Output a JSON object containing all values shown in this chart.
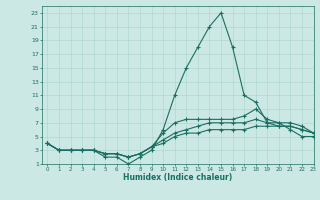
{
  "xlabel": "Humidex (Indice chaleur)",
  "xlim": [
    -0.5,
    23
  ],
  "ylim": [
    1,
    24
  ],
  "yticks": [
    1,
    3,
    5,
    7,
    9,
    11,
    13,
    15,
    17,
    19,
    21,
    23
  ],
  "xticks": [
    0,
    1,
    2,
    3,
    4,
    5,
    6,
    7,
    8,
    9,
    10,
    11,
    12,
    13,
    14,
    15,
    16,
    17,
    18,
    19,
    20,
    21,
    22,
    23
  ],
  "bg_color": "#cce8e4",
  "grid_color": "#b0d8d0",
  "line_color": "#1a6e62",
  "lines": [
    [
      4,
      3,
      3,
      3,
      3,
      2,
      2,
      1,
      2,
      3,
      6,
      11,
      15,
      18,
      21,
      23,
      18,
      11,
      10,
      7,
      7,
      6,
      5,
      5
    ],
    [
      4,
      3,
      3,
      3,
      3,
      2.5,
      2.5,
      2,
      2.5,
      3.5,
      5.5,
      7,
      7.5,
      7.5,
      7.5,
      7.5,
      7.5,
      8,
      9,
      7.5,
      7,
      7,
      6.5,
      5.5
    ],
    [
      4,
      3,
      3,
      3,
      3,
      2.5,
      2.5,
      2,
      2.5,
      3.5,
      4.5,
      5.5,
      6,
      6.5,
      7,
      7,
      7,
      7,
      7.5,
      7,
      6.5,
      6.5,
      6,
      5.5
    ],
    [
      4,
      3,
      3,
      3,
      3,
      2.5,
      2.5,
      2,
      2.5,
      3.5,
      4,
      5,
      5.5,
      5.5,
      6,
      6,
      6,
      6,
      6.5,
      6.5,
      6.5,
      6.5,
      6,
      5.5
    ]
  ]
}
